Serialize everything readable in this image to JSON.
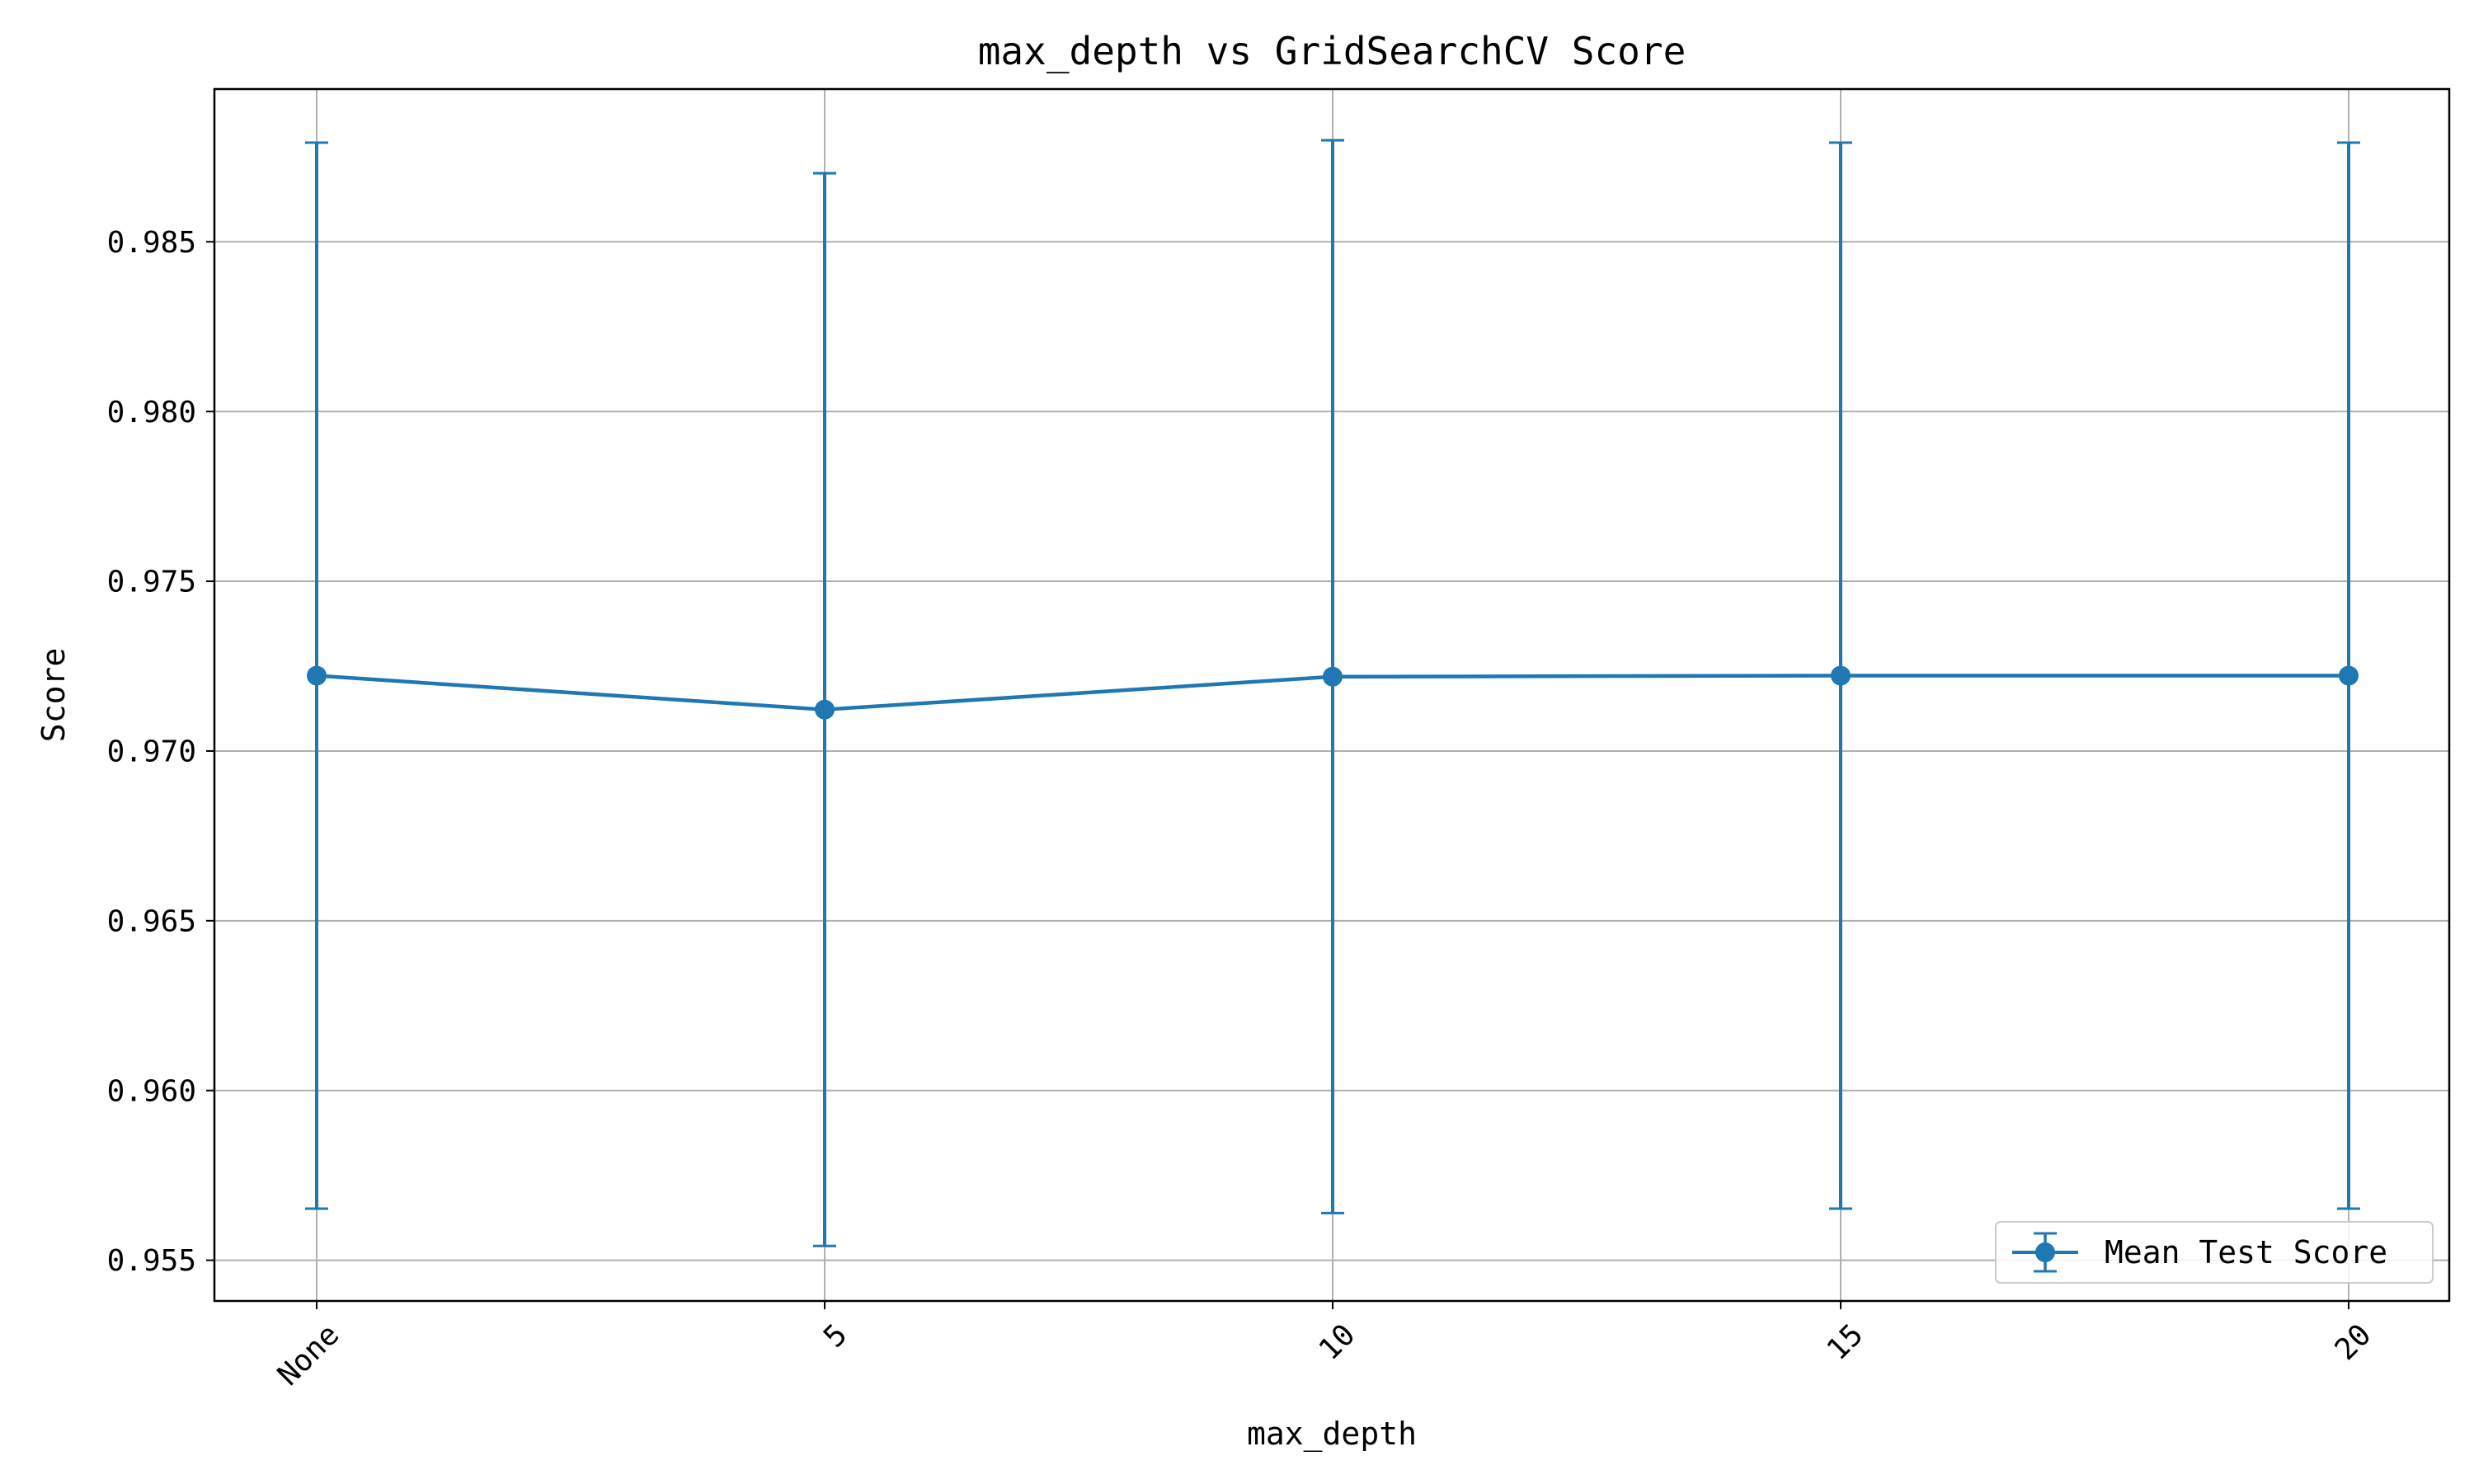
{
  "chart_data": {
    "type": "line",
    "title": "max_depth vs GridSearchCV Score",
    "xlabel": "max_depth",
    "ylabel": "Score",
    "categories": [
      "None",
      "5",
      "10",
      "15",
      "20"
    ],
    "series": [
      {
        "name": "Mean Test Score",
        "values": [
          0.97222,
          0.97122,
          0.97219,
          0.97222,
          0.97222
        ],
        "error": [
          0.0157,
          0.0158,
          0.0158,
          0.0157,
          0.0157
        ],
        "color": "#1f77b4",
        "marker": "circle",
        "error_bars": true
      }
    ],
    "ylim": [
      0.9538,
      0.9895
    ],
    "yticks": [
      0.955,
      0.96,
      0.965,
      0.97,
      0.975,
      0.98,
      0.985
    ],
    "ytick_labels": [
      "0.955",
      "0.960",
      "0.965",
      "0.970",
      "0.975",
      "0.980",
      "0.985"
    ],
    "xtick_rotation": 45,
    "grid": true,
    "legend_position": "lower right"
  }
}
